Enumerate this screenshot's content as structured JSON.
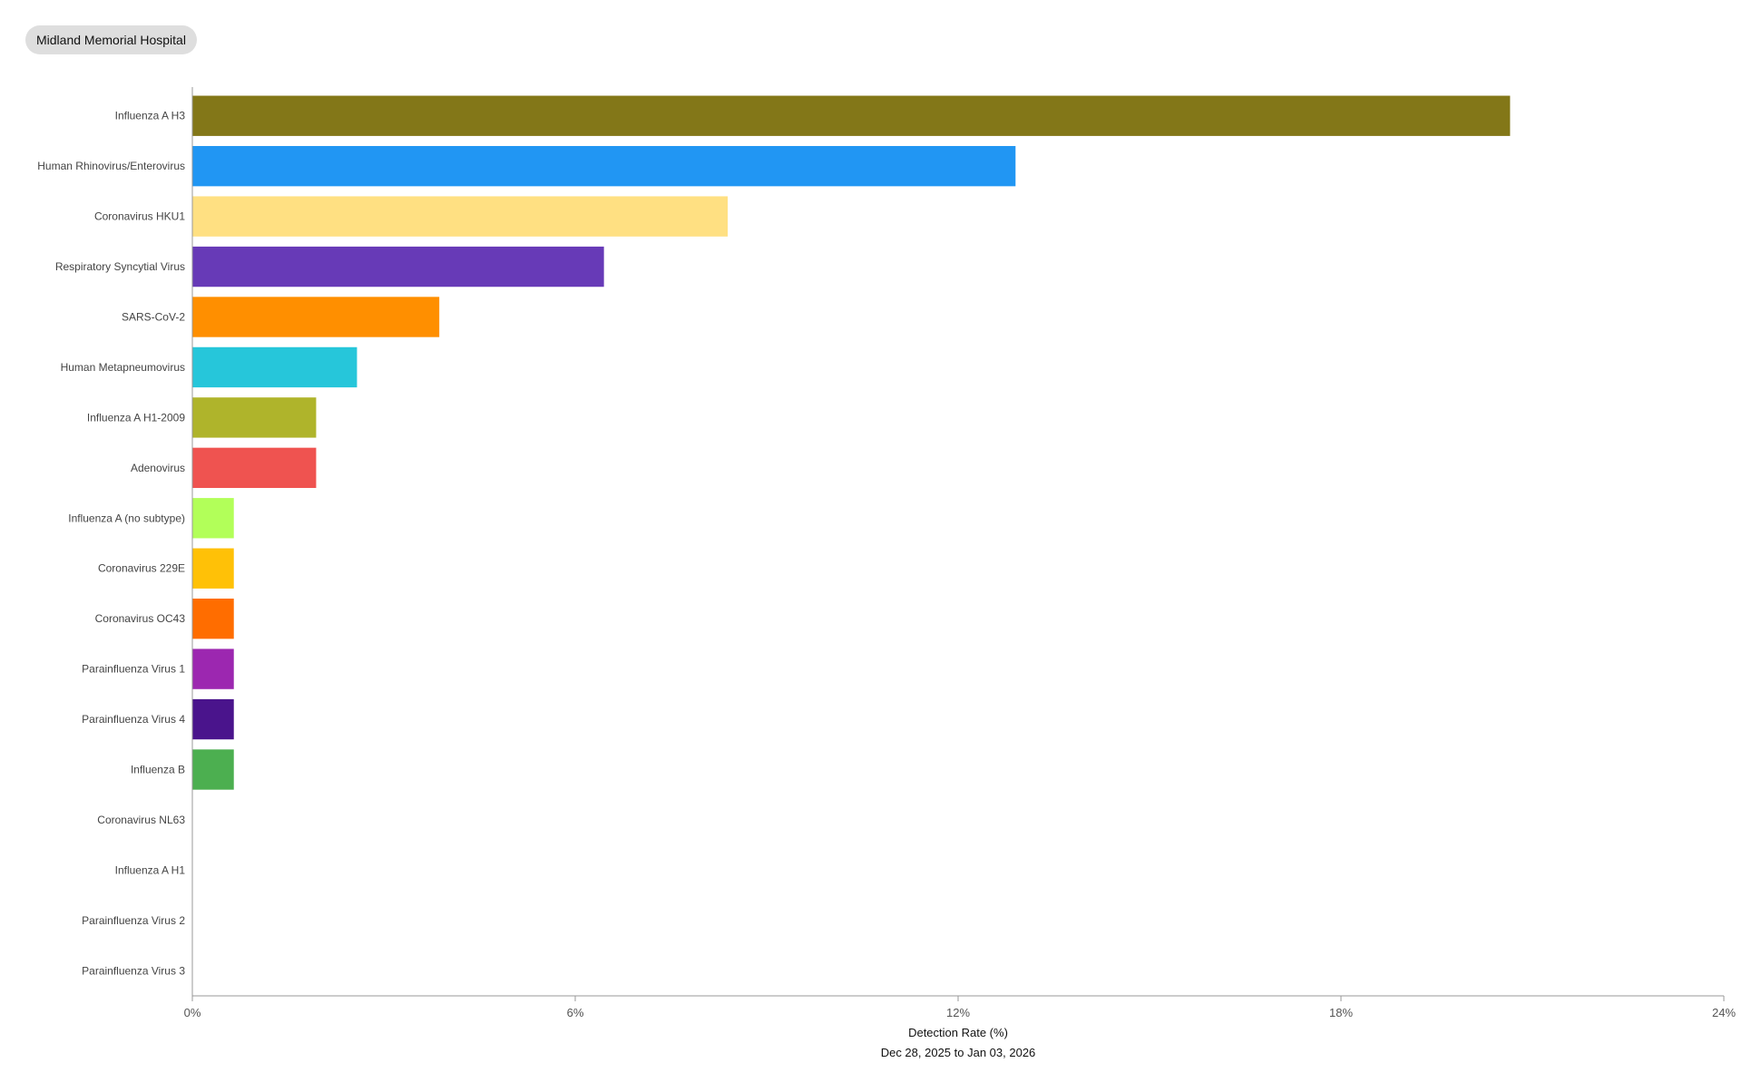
{
  "header": {
    "hospital": "Midland Memorial Hospital"
  },
  "chart_data": {
    "type": "bar",
    "orientation": "horizontal",
    "title": "",
    "xlabel": "Detection Rate (%)",
    "date_range": "Dec 28, 2025 to Jan 03, 2026",
    "xlim": [
      0,
      24
    ],
    "xticks": [
      {
        "value": 0,
        "label": "0%"
      },
      {
        "value": 6,
        "label": "6%"
      },
      {
        "value": 12,
        "label": "12%"
      },
      {
        "value": 18,
        "label": "18%"
      },
      {
        "value": 24,
        "label": "24%"
      }
    ],
    "grid": false,
    "legend": "none",
    "categories": [
      "Influenza A H3",
      "Human Rhinovirus/Enterovirus",
      "Coronavirus HKU1",
      "Respiratory Syncytial Virus",
      "SARS-CoV-2",
      "Human Metapneumovirus",
      "Influenza A H1-2009",
      "Adenovirus",
      "Influenza A (no subtype)",
      "Coronavirus 229E",
      "Coronavirus OC43",
      "Parainfluenza Virus 1",
      "Parainfluenza Virus 4",
      "Influenza B",
      "Coronavirus NL63",
      "Influenza A H1",
      "Parainfluenza Virus 2",
      "Parainfluenza Virus 3"
    ],
    "values": [
      20.65,
      12.9,
      8.39,
      6.45,
      3.87,
      2.58,
      1.94,
      1.94,
      0.65,
      0.65,
      0.65,
      0.65,
      0.65,
      0.65,
      0,
      0,
      0,
      0
    ],
    "colors": [
      "#837718",
      "#2196f3",
      "#ffe082",
      "#673ab7",
      "#ff8f00",
      "#26c6da",
      "#afb42b",
      "#ef5350",
      "#b2ff59",
      "#ffc107",
      "#ff6d00",
      "#9c27b0",
      "#4a148c",
      "#4caf50",
      "#9e9e9e",
      "#9e9e9e",
      "#9e9e9e",
      "#9e9e9e"
    ]
  }
}
